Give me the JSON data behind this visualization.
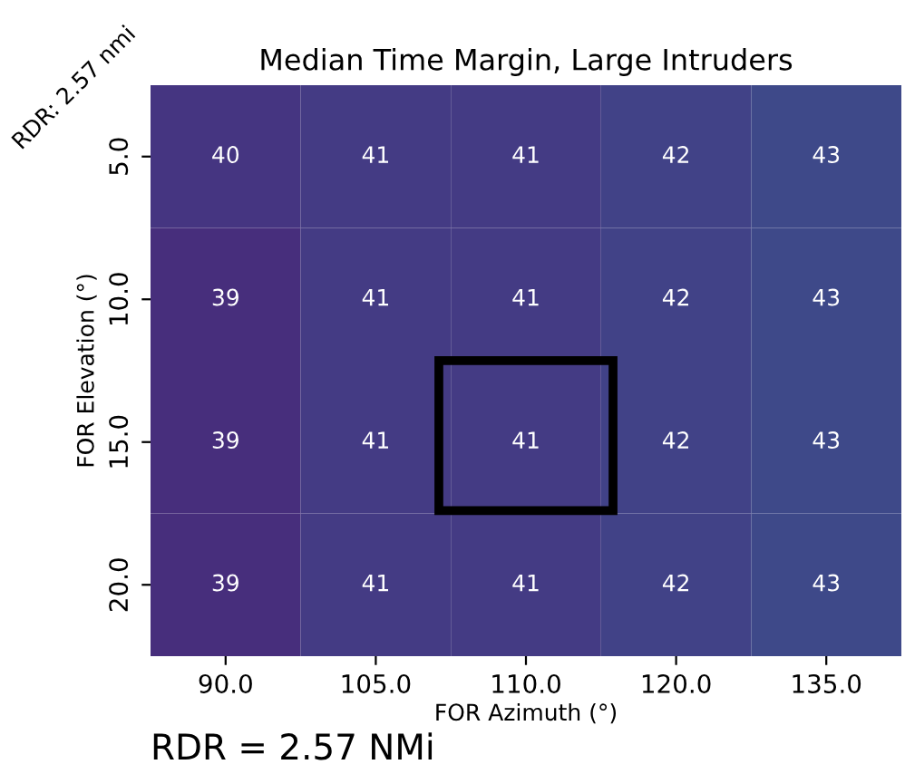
{
  "chart_data": {
    "type": "heatmap",
    "title": "Median Time Margin, Large Intruders",
    "xlabel": "FOR Azimuth (°)",
    "ylabel": "FOR Elevation (°)",
    "categories": [
      "90.0",
      "105.0",
      "110.0",
      "120.0",
      "135.0"
    ],
    "y_categories": [
      "5.0",
      "10.0",
      "15.0",
      "20.0"
    ],
    "cells": [
      [
        40,
        41,
        41,
        42,
        43
      ],
      [
        39,
        41,
        41,
        42,
        43
      ],
      [
        39,
        41,
        41,
        42,
        43
      ],
      [
        39,
        41,
        41,
        42,
        43
      ]
    ],
    "data_labels": true,
    "annotations": [
      "RDR: 2.57 nmi",
      "RDR = 2.57 NMi"
    ]
  }
}
